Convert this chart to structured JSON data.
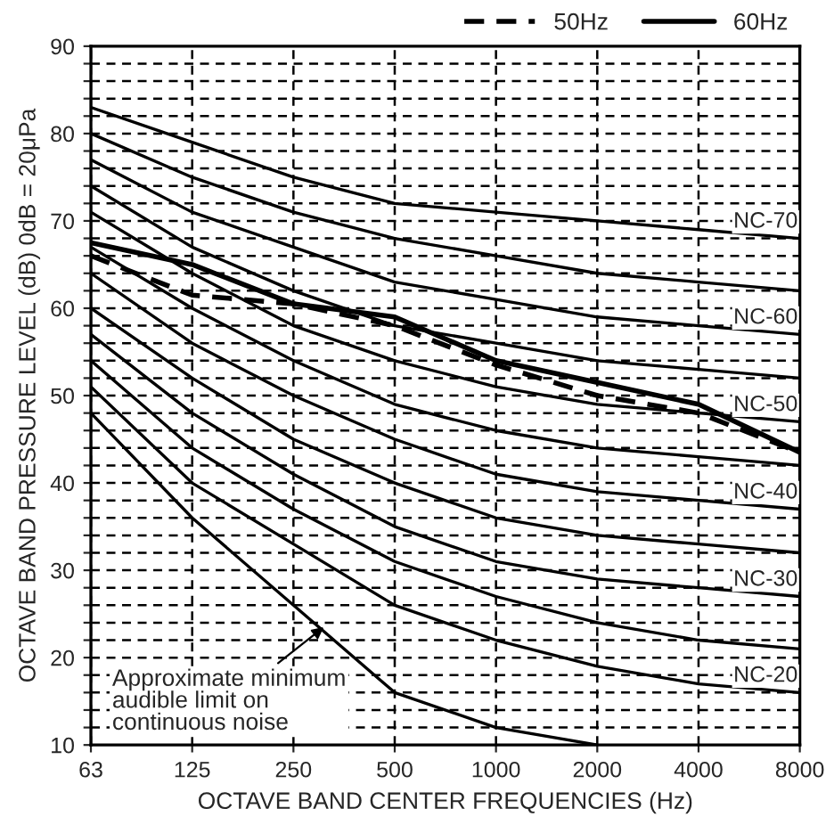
{
  "chart_data": {
    "type": "line",
    "xlabel": "OCTAVE BAND CENTER FREQUENCIES (Hz)",
    "ylabel": "OCTAVE BAND PRESSURE LEVEL (dB) 0dB = 20μPa",
    "categories": [
      "63",
      "125",
      "250",
      "500",
      "1000",
      "2000",
      "4000",
      "8000"
    ],
    "ylim": [
      10,
      90
    ],
    "yticks": [
      10,
      {
        "value": 12,
        "label": null
      },
      {
        "value": 14,
        "label": null
      },
      {
        "value": 16,
        "label": null
      },
      {
        "value": 18,
        "label": null
      },
      20,
      {
        "value": 22,
        "label": null
      },
      {
        "value": 24,
        "label": null
      },
      {
        "value": 26,
        "label": null
      },
      {
        "value": 28,
        "label": null
      },
      30,
      {
        "value": 32,
        "label": null
      },
      {
        "value": 34,
        "label": null
      },
      {
        "value": 36,
        "label": null
      },
      {
        "value": 38,
        "label": null
      },
      40,
      {
        "value": 42,
        "label": null
      },
      {
        "value": 44,
        "label": null
      },
      {
        "value": 46,
        "label": null
      },
      {
        "value": 48,
        "label": null
      },
      50,
      {
        "value": 52,
        "label": null
      },
      {
        "value": 54,
        "label": null
      },
      {
        "value": 56,
        "label": null
      },
      {
        "value": 58,
        "label": null
      },
      60,
      {
        "value": 62,
        "label": null
      },
      {
        "value": 64,
        "label": null
      },
      {
        "value": 66,
        "label": null
      },
      {
        "value": 68,
        "label": null
      },
      70,
      {
        "value": 72,
        "label": null
      },
      {
        "value": 74,
        "label": null
      },
      {
        "value": 76,
        "label": null
      },
      {
        "value": 78,
        "label": null
      },
      80,
      {
        "value": 82,
        "label": null
      },
      {
        "value": 84,
        "label": null
      },
      {
        "value": 86,
        "label": null
      },
      {
        "value": 88,
        "label": null
      },
      90
    ],
    "grid": true,
    "legend": "top right",
    "series": [
      {
        "color": "#000000",
        "values": [
          83,
          79,
          75,
          72,
          71,
          70,
          69,
          68
        ]
      },
      {
        "color": "#000000",
        "values": [
          80,
          75,
          71,
          68,
          66,
          64,
          63,
          62
        ]
      },
      {
        "color": "#000000",
        "values": [
          77,
          71,
          67,
          63,
          61,
          59,
          58,
          57
        ]
      },
      {
        "color": "#000000",
        "values": [
          74,
          67,
          62,
          58,
          56,
          54,
          53,
          52
        ]
      },
      {
        "color": "#000000",
        "values": [
          71,
          64,
          58,
          54,
          51,
          49,
          48,
          47
        ]
      },
      {
        "color": "#000000",
        "values": [
          67,
          60,
          54,
          49,
          46,
          44,
          43,
          42
        ]
      },
      {
        "color": "#000000",
        "values": [
          64,
          56,
          50,
          45,
          41,
          39,
          38,
          37
        ]
      },
      {
        "color": "#000000",
        "values": [
          60,
          52,
          45,
          40,
          36,
          34,
          33,
          32
        ]
      },
      {
        "color": "#000000",
        "values": [
          57,
          48,
          41,
          35,
          31,
          29,
          28,
          27
        ]
      },
      {
        "color": "#000000",
        "values": [
          54,
          44,
          37,
          31,
          27,
          24,
          22,
          21
        ]
      },
      {
        "color": "#000000",
        "values": [
          51,
          40,
          33,
          26,
          22,
          19,
          17,
          16
        ]
      },
      {
        "color": "#000000",
        "values": [
          48,
          36,
          26,
          16,
          12,
          10,
          null,
          null
        ]
      },
      {
        "name": "50Hz",
        "color": "#000000",
        "line_style": "dashed",
        "values": [
          66,
          61.5,
          60.5,
          58,
          53.5,
          50,
          48,
          43.5
        ]
      },
      {
        "name": "60Hz",
        "color": "#000000",
        "line_style": "solid",
        "values": [
          67.5,
          65,
          60.5,
          59,
          54,
          51.5,
          49,
          43.5
        ]
      }
    ],
    "annotations": [
      {
        "text": "NC-70",
        "x": "8000",
        "y": 68
      },
      {
        "text": "NC-60",
        "x": "8000",
        "y": 57
      },
      {
        "text": "NC-50",
        "x": "8000",
        "y": 47
      },
      {
        "text": "NC-40",
        "x": "8000",
        "y": 37
      },
      {
        "text": "NC-30",
        "x": "8000",
        "y": 27
      },
      {
        "text": "NC-20",
        "x": "8000",
        "y": 16
      },
      {
        "text": "Approximate minimum\naudible limit on\ncontinuous noise",
        "x": "250",
        "y": 26
      }
    ]
  }
}
